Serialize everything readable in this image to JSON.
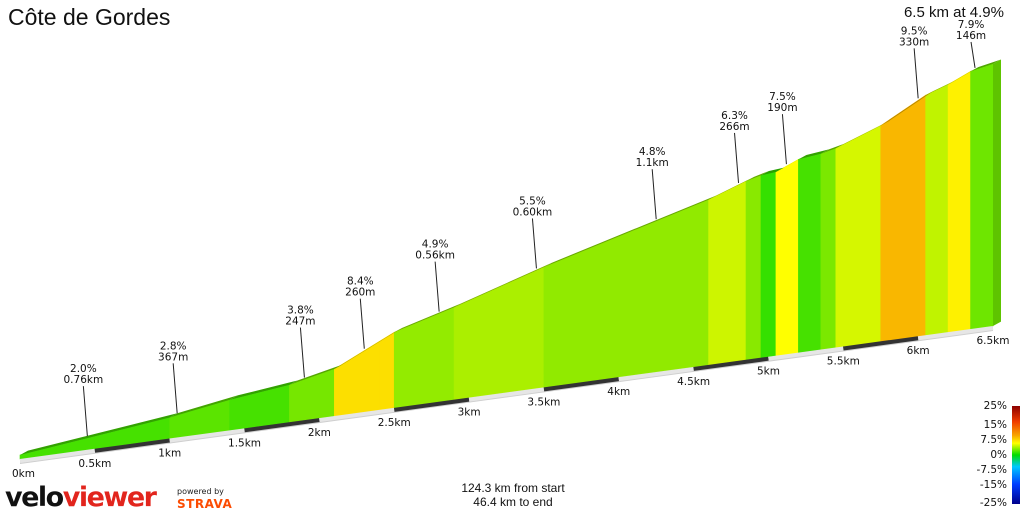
{
  "header": {
    "title": "Côte de Gordes",
    "summary": "6.5 km at 4.9%"
  },
  "footer": {
    "from_start": "124.3 km from start",
    "to_end": "46.4 km to end"
  },
  "branding": {
    "logo_part1": "velo",
    "logo_part2": "viewer",
    "powered_by": "powered by",
    "strava": "STRAVA"
  },
  "legend": {
    "labels": [
      "25%",
      "15%",
      "7.5%",
      "0%",
      "-7.5%",
      "-15%",
      "-25%"
    ]
  },
  "chart_data": {
    "type": "area",
    "title": "Côte de Gordes",
    "xlabel": "",
    "ylabel": "",
    "x_unit": "km",
    "xlim": [
      0,
      6.5
    ],
    "x_ticks": [
      "0km",
      "0.5km",
      "1km",
      "1.5km",
      "2km",
      "2.5km",
      "3km",
      "3.5km",
      "4km",
      "4.5km",
      "5km",
      "5.5km",
      "6km",
      "6.5km"
    ],
    "segments": [
      {
        "start_km": 0.0,
        "end_km": 1.0,
        "gradient": 2.0
      },
      {
        "start_km": 1.0,
        "end_km": 1.4,
        "gradient": 2.8
      },
      {
        "start_km": 1.4,
        "end_km": 1.8,
        "gradient": 2.0
      },
      {
        "start_km": 1.8,
        "end_km": 2.1,
        "gradient": 3.8
      },
      {
        "start_km": 2.1,
        "end_km": 2.4,
        "gradient": 8.4
      },
      {
        "start_km": 2.4,
        "end_km": 2.5,
        "gradient": 8.4
      },
      {
        "start_km": 2.5,
        "end_km": 2.9,
        "gradient": 4.9
      },
      {
        "start_km": 2.9,
        "end_km": 3.5,
        "gradient": 5.5
      },
      {
        "start_km": 3.5,
        "end_km": 4.6,
        "gradient": 4.8
      },
      {
        "start_km": 4.6,
        "end_km": 4.85,
        "gradient": 6.3
      },
      {
        "start_km": 4.85,
        "end_km": 4.95,
        "gradient": 4.5
      },
      {
        "start_km": 4.95,
        "end_km": 5.05,
        "gradient": 1.5
      },
      {
        "start_km": 5.05,
        "end_km": 5.2,
        "gradient": 7.5
      },
      {
        "start_km": 5.2,
        "end_km": 5.35,
        "gradient": 2.0
      },
      {
        "start_km": 5.35,
        "end_km": 5.45,
        "gradient": 4.0
      },
      {
        "start_km": 5.45,
        "end_km": 5.75,
        "gradient": 6.5
      },
      {
        "start_km": 5.75,
        "end_km": 6.05,
        "gradient": 9.5
      },
      {
        "start_km": 6.05,
        "end_km": 6.2,
        "gradient": 6.0
      },
      {
        "start_km": 6.2,
        "end_km": 6.35,
        "gradient": 7.9
      },
      {
        "start_km": 6.35,
        "end_km": 6.5,
        "gradient": 3.5
      }
    ],
    "annotations": [
      {
        "km": 0.45,
        "gradient": "2.0%",
        "length": "0.76km"
      },
      {
        "km": 1.05,
        "gradient": "2.8%",
        "length": "367m"
      },
      {
        "km": 1.9,
        "gradient": "3.8%",
        "length": "247m"
      },
      {
        "km": 2.3,
        "gradient": "8.4%",
        "length": "260m"
      },
      {
        "km": 2.8,
        "gradient": "4.9%",
        "length": "0.56km"
      },
      {
        "km": 3.45,
        "gradient": "5.5%",
        "length": "0.60km"
      },
      {
        "km": 4.25,
        "gradient": "4.8%",
        "length": "1.1km"
      },
      {
        "km": 4.8,
        "gradient": "6.3%",
        "length": "266m"
      },
      {
        "km": 5.12,
        "gradient": "7.5%",
        "length": "190m"
      },
      {
        "km": 6.0,
        "gradient": "9.5%",
        "length": "330m"
      },
      {
        "km": 6.38,
        "gradient": "7.9%",
        "length": "146m"
      }
    ]
  }
}
